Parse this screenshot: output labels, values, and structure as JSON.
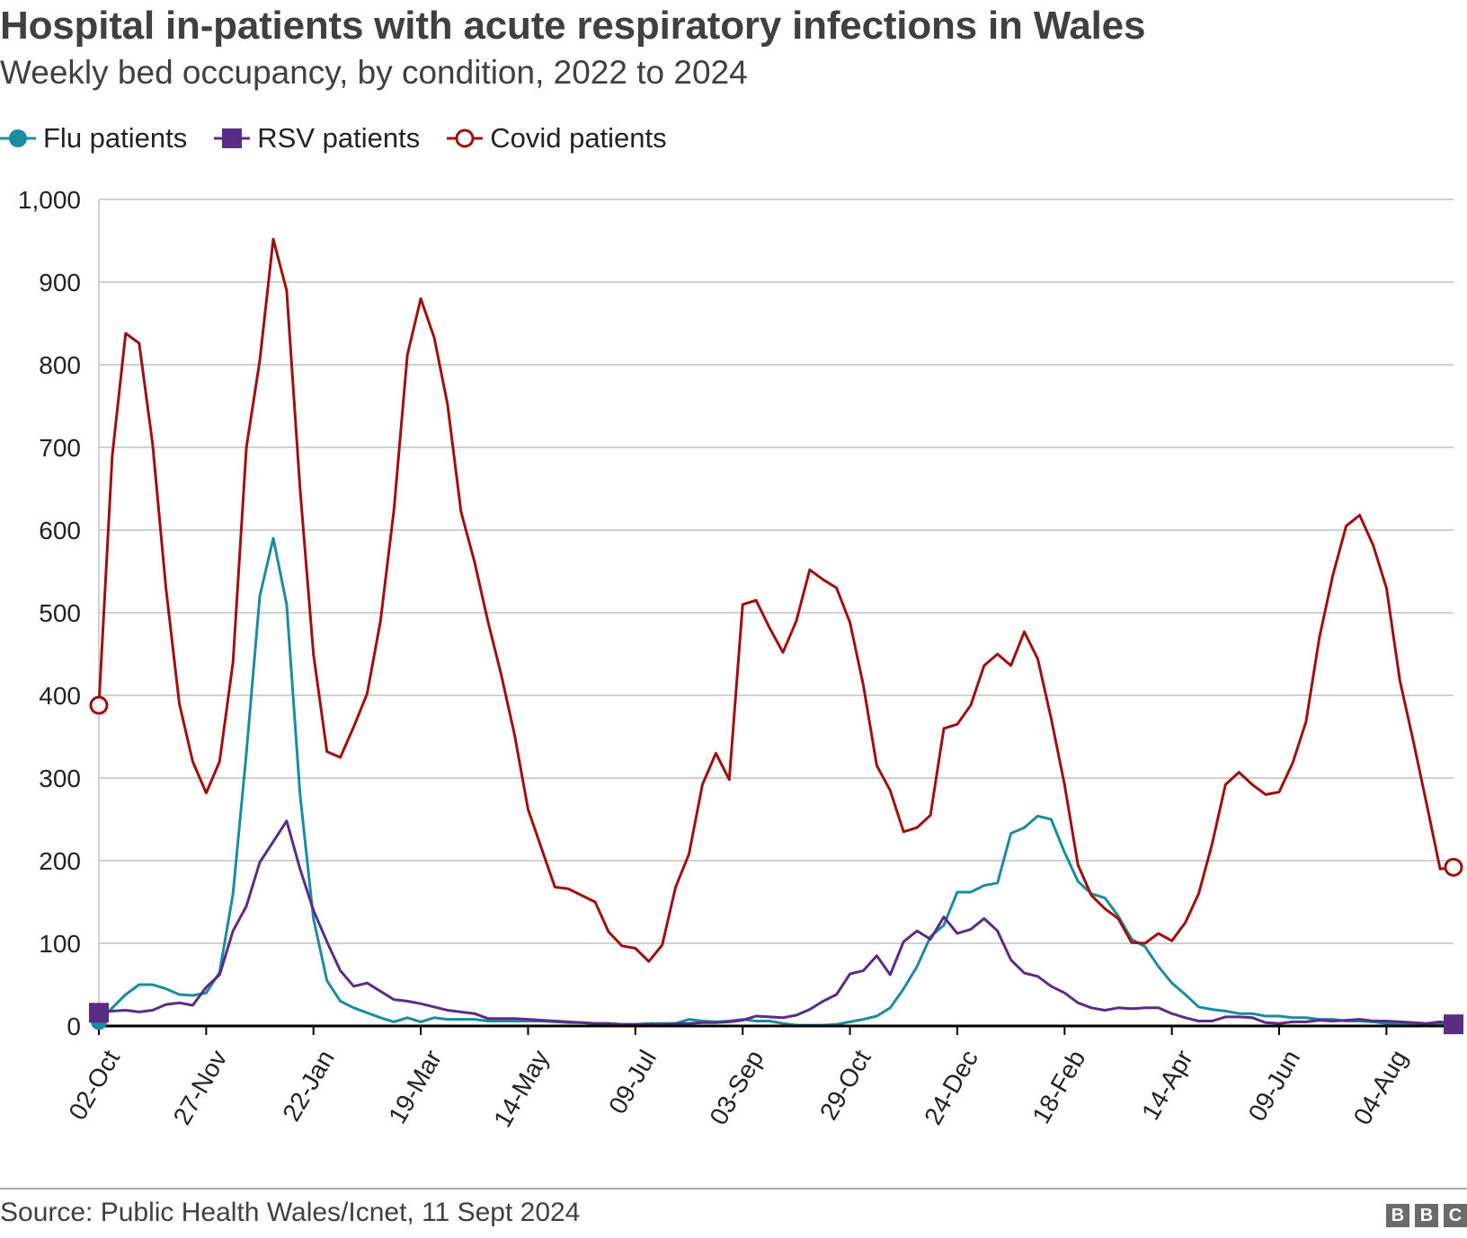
{
  "header": {
    "title": "Hospital in-patients with acute respiratory infections in Wales",
    "subtitle": "Weekly bed occupancy, by condition, 2022 to 2024"
  },
  "legend": {
    "flu_label": "Flu patients",
    "rsv_label": "RSV patients",
    "covid_label": "Covid patients"
  },
  "footer": {
    "source": "Source: Public Health Wales/Icnet, 11 Sept 2024",
    "logo_letters": [
      "B",
      "B",
      "C"
    ]
  },
  "colors": {
    "flu": "#1a8ca0",
    "rsv": "#5b2c86",
    "covid": "#a00f0f",
    "grid": "#d0d0d0",
    "baseline": "#000000"
  },
  "chart_data": {
    "type": "line",
    "title": "Hospital in-patients with acute respiratory infections in Wales",
    "subtitle": "Weekly bed occupancy, by condition, 2022 to 2024",
    "xlabel": "",
    "ylabel": "",
    "ylim": [
      0,
      1000
    ],
    "yticks": [
      0,
      100,
      200,
      300,
      400,
      500,
      600,
      700,
      800,
      900,
      1000
    ],
    "ytick_labels": [
      "0",
      "100",
      "200",
      "300",
      "400",
      "500",
      "600",
      "700",
      "800",
      "900",
      "1,000"
    ],
    "grid": true,
    "legend_position": "top-left",
    "x_tick_labels": [
      {
        "index": 0,
        "label": "02-Oct"
      },
      {
        "index": 8,
        "label": "27-Nov"
      },
      {
        "index": 16,
        "label": "22-Jan"
      },
      {
        "index": 24,
        "label": "19-Mar"
      },
      {
        "index": 32,
        "label": "14-May"
      },
      {
        "index": 40,
        "label": "09-Jul"
      },
      {
        "index": 48,
        "label": "03-Sep"
      },
      {
        "index": 56,
        "label": "29-Oct"
      },
      {
        "index": 64,
        "label": "24-Dec"
      },
      {
        "index": 72,
        "label": "18-Feb"
      },
      {
        "index": 80,
        "label": "14-Apr"
      },
      {
        "index": 88,
        "label": "09-Jun"
      },
      {
        "index": 96,
        "label": "04-Aug"
      }
    ],
    "series": [
      {
        "name": "Flu patients",
        "key": "flu",
        "marker": "filled-circle",
        "values": [
          5,
          22,
          38,
          50,
          50,
          45,
          38,
          37,
          40,
          65,
          160,
          330,
          520,
          590,
          510,
          280,
          130,
          55,
          30,
          22,
          16,
          10,
          5,
          10,
          5,
          10,
          8,
          8,
          8,
          6,
          6,
          6,
          6,
          6,
          5,
          4,
          4,
          3,
          3,
          2,
          2,
          3,
          3,
          3,
          8,
          6,
          5,
          6,
          8,
          6,
          6,
          3,
          1,
          1,
          1,
          2,
          5,
          8,
          12,
          22,
          45,
          72,
          108,
          122,
          162,
          162,
          170,
          173,
          233,
          240,
          254,
          250,
          210,
          175,
          160,
          155,
          133,
          105,
          96,
          72,
          52,
          38,
          23,
          20,
          18,
          15,
          15,
          12,
          12,
          10,
          10,
          8,
          8,
          6,
          6,
          5,
          3,
          3,
          2,
          2,
          2,
          1
        ]
      },
      {
        "name": "RSV patients",
        "key": "rsv",
        "marker": "filled-square",
        "values": [
          16,
          18,
          19,
          17,
          19,
          26,
          28,
          25,
          47,
          62,
          115,
          145,
          198,
          223,
          248,
          190,
          140,
          102,
          67,
          48,
          52,
          42,
          32,
          30,
          27,
          23,
          19,
          17,
          15,
          9,
          9,
          9,
          8,
          7,
          6,
          5,
          4,
          3,
          3,
          2,
          2,
          2,
          2,
          3,
          3,
          4,
          4,
          5,
          7,
          12,
          11,
          10,
          13,
          20,
          30,
          38,
          63,
          67,
          85,
          62,
          102,
          115,
          105,
          132,
          112,
          117,
          130,
          115,
          80,
          64,
          60,
          48,
          40,
          28,
          22,
          19,
          22,
          21,
          22,
          22,
          15,
          10,
          6,
          6,
          11,
          11,
          10,
          4,
          3,
          5,
          5,
          7,
          6,
          7,
          8,
          6,
          6,
          5,
          4,
          3,
          5,
          2
        ]
      },
      {
        "name": "Covid patients",
        "key": "covid",
        "marker": "open-circle",
        "values": [
          388,
          690,
          838,
          826,
          705,
          530,
          390,
          320,
          282,
          320,
          440,
          700,
          805,
          952,
          890,
          650,
          450,
          332,
          325,
          362,
          402,
          490,
          625,
          812,
          880,
          833,
          752,
          622,
          562,
          490,
          425,
          352,
          262,
          215,
          168,
          166,
          158,
          150,
          114,
          97,
          94,
          78,
          98,
          168,
          208,
          292,
          330,
          298,
          510,
          515,
          482,
          452,
          490,
          552,
          540,
          530,
          488,
          412,
          315,
          285,
          235,
          240,
          255,
          360,
          365,
          388,
          436,
          450,
          436,
          477,
          444,
          372,
          292,
          195,
          158,
          142,
          130,
          101,
          100,
          112,
          103,
          125,
          160,
          220,
          292,
          307,
          292,
          280,
          283,
          318,
          368,
          470,
          545,
          605,
          618,
          582,
          530,
          418,
          345,
          268,
          190,
          192
        ]
      }
    ]
  }
}
